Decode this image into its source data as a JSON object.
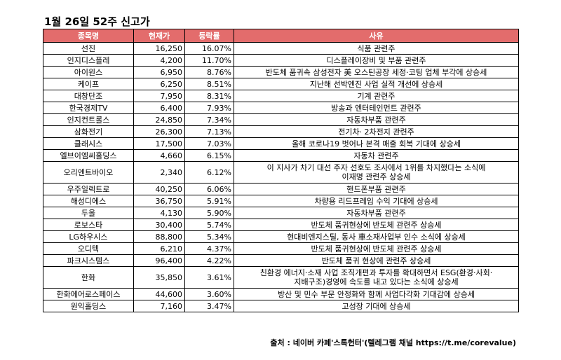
{
  "title": "1월 26일 52주 신고가",
  "headers": {
    "name": "종목명",
    "price": "현재가",
    "change": "등락률",
    "reason": "사유"
  },
  "rows": [
    {
      "name": "선진",
      "price": "16,250",
      "change": "16.07%",
      "reason": [
        "식품 관련주"
      ]
    },
    {
      "name": "인지디스플레",
      "price": "4,200",
      "change": "11.70%",
      "reason": [
        "디스플레이장비 및 부품 관련주"
      ]
    },
    {
      "name": "아이원스",
      "price": "6,950",
      "change": "8.76%",
      "reason": [
        "반도체 품귀속 삼성전자 美 오스틴공장 세정·코팅 업체 부각에 상승세"
      ]
    },
    {
      "name": "케이프",
      "price": "6,250",
      "change": "8.51%",
      "reason": [
        "지난해 선박엔진 사업 실적 개선에 상승세"
      ]
    },
    {
      "name": "대창단조",
      "price": "7,950",
      "change": "8.31%",
      "reason": [
        "기계 관련주"
      ]
    },
    {
      "name": "한국경제TV",
      "price": "6,400",
      "change": "7.93%",
      "reason": [
        "방송과 엔터테인먼트 관련주"
      ]
    },
    {
      "name": "인지컨트롤스",
      "price": "24,850",
      "change": "7.34%",
      "reason": [
        "자동차부품 관련주"
      ]
    },
    {
      "name": "삼화전기",
      "price": "26,300",
      "change": "7.13%",
      "reason": [
        "전기차· 2차전지 관련주"
      ]
    },
    {
      "name": "클래시스",
      "price": "17,500",
      "change": "7.03%",
      "reason": [
        "올해 코로나19 벗어나 본격 매출 회복 기대에 상승세"
      ]
    },
    {
      "name": "엘브이엠씨홀딩스",
      "price": "4,660",
      "change": "6.15%",
      "reason": [
        "자동차 관련주"
      ]
    },
    {
      "name": "오리엔트바이오",
      "price": "2,340",
      "change": "6.12%",
      "reason": [
        "이 지사가 차기 대선 주자 선호도 조사에서 1위를 차지했다는 소식에",
        "이재명 관련주 상승세"
      ]
    },
    {
      "name": "우주일렉트로",
      "price": "40,250",
      "change": "6.06%",
      "reason": [
        "핸드폰부품 관련주"
      ]
    },
    {
      "name": "해성디에스",
      "price": "36,750",
      "change": "5.91%",
      "reason": [
        "차량용 리드프레임 수익 기대에 상승세"
      ]
    },
    {
      "name": "두올",
      "price": "4,130",
      "change": "5.90%",
      "reason": [
        "자동차부품 관련주"
      ]
    },
    {
      "name": "로보스타",
      "price": "30,400",
      "change": "5.74%",
      "reason": [
        "반도체 품귀현상에 반도체 관련주 상승세"
      ]
    },
    {
      "name": "LG하우시스",
      "price": "88,800",
      "change": "5.34%",
      "reason": [
        "현대비엔지스틸, 동사 車소재사업부 인수 소식에 상승세"
      ]
    },
    {
      "name": "오디텍",
      "price": "6,210",
      "change": "4.37%",
      "reason": [
        "반도체 품귀현상에 반도체 관련주 상승세"
      ]
    },
    {
      "name": "파크시스템스",
      "price": "96,400",
      "change": "4.22%",
      "reason": [
        "반도체 품귀 현상에 관련주 상승세"
      ]
    },
    {
      "name": "한화",
      "price": "35,850",
      "change": "3.61%",
      "reason": [
        "친환경 에너지·소재 사업 조직개편과 투자를 확대하면서 ESG(환경·사회·",
        "지배구조)경영에 속도를 내고 있다는 소식에 상승세"
      ]
    },
    {
      "name": "한화에어로스페이스",
      "price": "44,600",
      "change": "3.60%",
      "reason": [
        "방산 및 민수 부문 안정화와 함께 사업다각화 기대감에 상승세"
      ]
    },
    {
      "name": "원익홀딩스",
      "price": "7,160",
      "change": "3.47%",
      "reason": [
        "고성장 기대에 상승세"
      ]
    }
  ],
  "source": "출처 : 네이버 카페'스톡헌터'(텔레그램 채널 https://t.me/corevalue)"
}
